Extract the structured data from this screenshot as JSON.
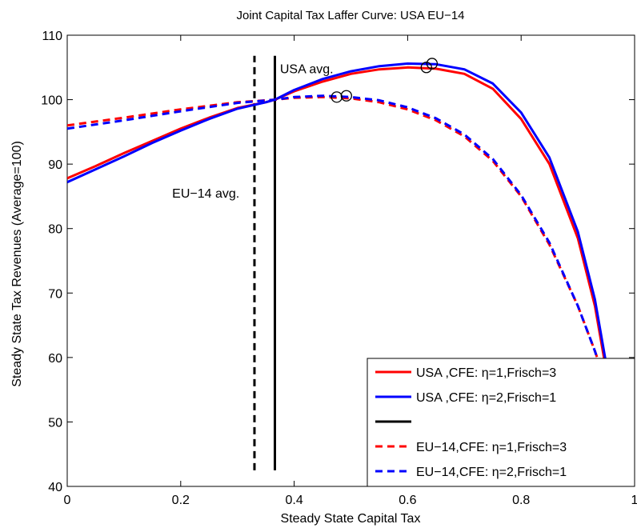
{
  "chart_data": {
    "type": "line",
    "title": "Joint Capital Tax Laffer Curve: USA  EU−14",
    "xlabel": "Steady State Capital Tax",
    "ylabel": "Steady State Tax Revenues (Average=100)",
    "xlim": [
      0,
      1
    ],
    "ylim": [
      40,
      110
    ],
    "x_ticks": [
      0,
      0.2,
      0.4,
      0.6,
      0.8,
      1
    ],
    "y_ticks": [
      40,
      50,
      60,
      70,
      80,
      90,
      100,
      110
    ],
    "x_tick_labels": [
      "0",
      "0.2",
      "0.4",
      "0.6",
      "0.8",
      "1"
    ],
    "y_tick_labels": [
      "40",
      "50",
      "60",
      "70",
      "80",
      "90",
      "100",
      "110"
    ],
    "grid": false,
    "legend_position": "bottom-right",
    "series": [
      {
        "name": "USA  ,CFE: η=1,Frisch=3",
        "color": "#ff0000",
        "style": "solid",
        "x": [
          0,
          0.05,
          0.1,
          0.15,
          0.2,
          0.25,
          0.3,
          0.35,
          0.366,
          0.4,
          0.45,
          0.5,
          0.55,
          0.6,
          0.65,
          0.7,
          0.75,
          0.8,
          0.85,
          0.9,
          0.93,
          0.95,
          0.97,
          0.99
        ],
        "y": [
          87.8,
          89.7,
          91.7,
          93.6,
          95.5,
          97.2,
          98.7,
          99.6,
          100,
          101.3,
          102.8,
          104.0,
          104.7,
          105.0,
          104.8,
          104.0,
          101.7,
          97.0,
          90.0,
          78.5,
          68.0,
          58.0,
          48.0,
          43.0
        ]
      },
      {
        "name": "USA  ,CFE: η=2,Frisch=1",
        "color": "#0000ff",
        "style": "solid",
        "x": [
          0,
          0.05,
          0.1,
          0.15,
          0.2,
          0.25,
          0.3,
          0.35,
          0.366,
          0.4,
          0.45,
          0.5,
          0.55,
          0.6,
          0.65,
          0.7,
          0.75,
          0.8,
          0.85,
          0.9,
          0.93,
          0.95,
          0.97,
          0.99
        ],
        "y": [
          87.2,
          89.2,
          91.2,
          93.3,
          95.2,
          97.0,
          98.6,
          99.6,
          100,
          101.5,
          103.2,
          104.4,
          105.2,
          105.6,
          105.5,
          104.7,
          102.5,
          98.0,
          91.0,
          79.5,
          69.0,
          59.0,
          49.0,
          43.0
        ]
      },
      {
        "name": "EU−14,CFE: η=1,Frisch=3",
        "color": "#ff0000",
        "style": "dashed",
        "x": [
          0,
          0.1,
          0.2,
          0.3,
          0.366,
          0.4,
          0.45,
          0.5,
          0.55,
          0.6,
          0.65,
          0.7,
          0.75,
          0.8,
          0.85,
          0.9,
          0.93,
          0.95,
          0.97,
          0.99
        ],
        "y": [
          96.0,
          97.2,
          98.5,
          99.6,
          100,
          100.3,
          100.4,
          100.2,
          99.6,
          98.5,
          96.8,
          94.3,
          90.5,
          85.0,
          77.5,
          68.0,
          61.0,
          56.0,
          48.0,
          43.0
        ]
      },
      {
        "name": "EU−14,CFE: η=2,Frisch=1",
        "color": "#0000ff",
        "style": "dashed",
        "x": [
          0,
          0.1,
          0.2,
          0.3,
          0.366,
          0.4,
          0.45,
          0.5,
          0.55,
          0.6,
          0.65,
          0.7,
          0.75,
          0.8,
          0.85,
          0.9,
          0.93,
          0.95,
          0.97,
          0.99
        ],
        "y": [
          95.5,
          96.8,
          98.2,
          99.5,
          100,
          100.4,
          100.6,
          100.4,
          99.9,
          98.8,
          97.1,
          94.6,
          90.8,
          85.2,
          77.8,
          68.0,
          61.0,
          55.5,
          47.5,
          43.0
        ]
      }
    ],
    "vertical_lines": [
      {
        "x": 0.366,
        "style": "solid",
        "color": "#000000",
        "y_range": [
          42.5,
          106.8
        ]
      },
      {
        "x": 0.33,
        "style": "dashed",
        "color": "#000000",
        "y_range": [
          42.5,
          106.8
        ]
      }
    ],
    "peak_markers": [
      {
        "x": 0.633,
        "y": 105.0,
        "series": "USA  ,CFE: η=1,Frisch=3"
      },
      {
        "x": 0.643,
        "y": 105.6,
        "series": "USA  ,CFE: η=2,Frisch=1"
      },
      {
        "x": 0.475,
        "y": 100.4,
        "series": "EU−14,CFE: η=1,Frisch=3"
      },
      {
        "x": 0.492,
        "y": 100.6,
        "series": "EU−14,CFE: η=2,Frisch=1"
      }
    ],
    "annotations": [
      {
        "text": "USA   avg.",
        "x": 0.375,
        "y": 104.1
      },
      {
        "text": "EU−14 avg.",
        "x": 0.185,
        "y": 84.8
      }
    ],
    "legend_entries": [
      {
        "label": "USA  ,CFE: η=1,Frisch=3",
        "color": "#ff0000",
        "style": "solid"
      },
      {
        "label": "USA  ,CFE: η=2,Frisch=1",
        "color": "#0000ff",
        "style": "solid"
      },
      {
        "label": "",
        "color": "#000000",
        "style": "solid"
      },
      {
        "label": "EU−14,CFE: η=1,Frisch=3",
        "color": "#ff0000",
        "style": "dashed"
      },
      {
        "label": "EU−14,CFE: η=2,Frisch=1",
        "color": "#0000ff",
        "style": "dashed"
      }
    ]
  }
}
